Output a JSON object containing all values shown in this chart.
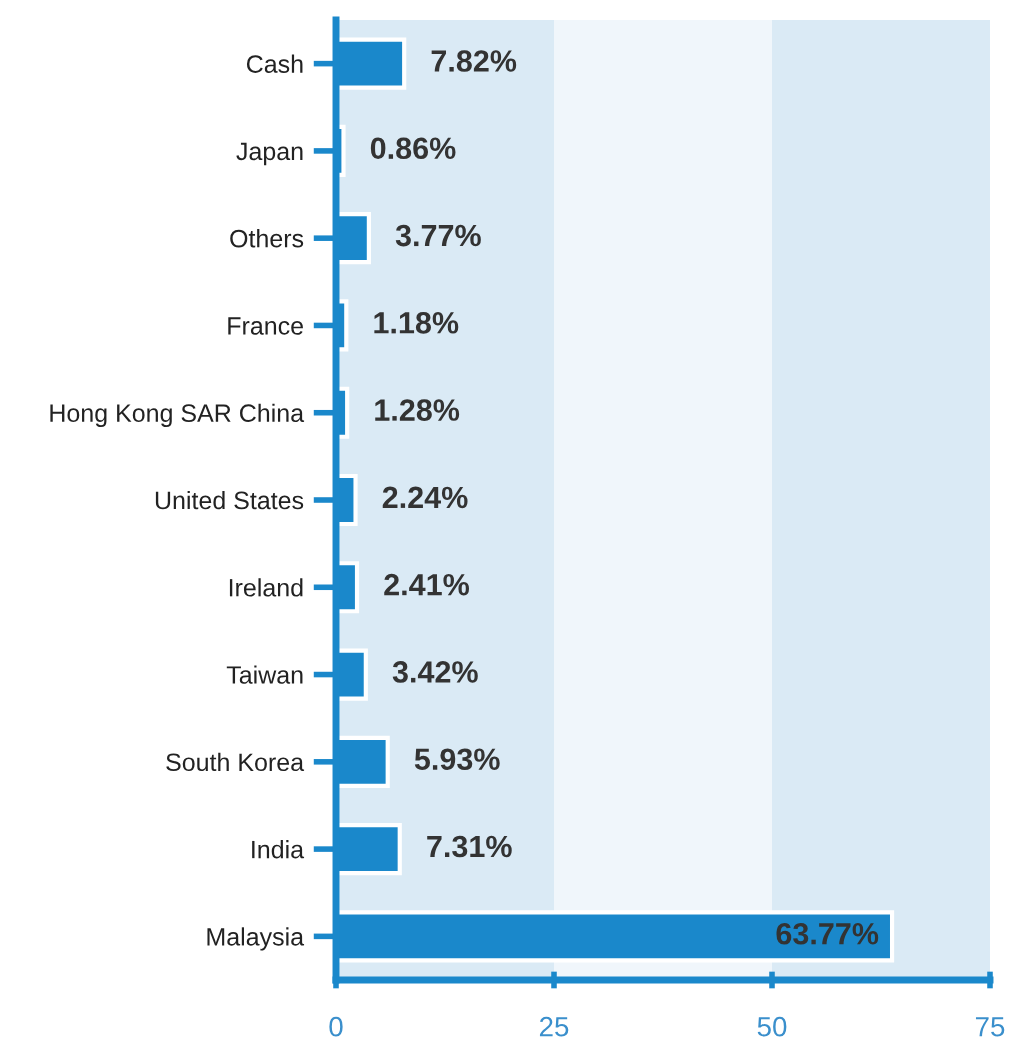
{
  "chart_data": {
    "type": "bar",
    "orientation": "horizontal",
    "categories": [
      "Cash",
      "Japan",
      "Others",
      "France",
      "Hong Kong SAR China",
      "United States",
      "Ireland",
      "Taiwan",
      "South Korea",
      "India",
      "Malaysia"
    ],
    "values": [
      7.82,
      0.86,
      3.77,
      1.18,
      1.28,
      2.24,
      2.41,
      3.42,
      5.93,
      7.31,
      63.77
    ],
    "value_labels": [
      "7.82%",
      "0.86%",
      "3.77%",
      "1.18%",
      "1.28%",
      "2.24%",
      "2.41%",
      "3.42%",
      "5.93%",
      "7.31%",
      "63.77%"
    ],
    "color": "#1a88cb",
    "xlim": [
      0,
      75
    ],
    "xticks": [
      0,
      25,
      50,
      75
    ],
    "bands": [
      {
        "axis": "x",
        "from": 0,
        "to": 25,
        "color": "#daeaf5"
      },
      {
        "axis": "x",
        "from": 25,
        "to": 50,
        "color": "#f0f6fb"
      },
      {
        "axis": "x",
        "from": 50,
        "to": 75,
        "color": "#daeaf5"
      }
    ],
    "grid": false,
    "legend": false
  }
}
